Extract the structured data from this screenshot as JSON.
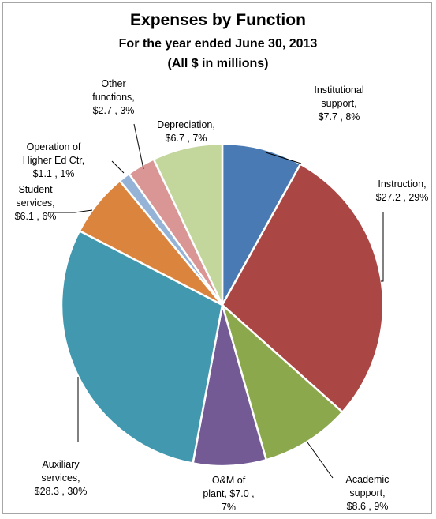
{
  "chart_data": {
    "type": "pie",
    "title": "Expenses by Function",
    "subtitle": "For the year ended June 30, 2013",
    "subtitle2": "(All $ in millions)",
    "slices": [
      {
        "name": "Institutional support",
        "value": 7.7,
        "percent": 8,
        "color": "#4a7ab4",
        "label_lines": [
          "Institutional",
          "support,",
          "$7.7 , 8%"
        ]
      },
      {
        "name": "Instruction",
        "value": 27.2,
        "percent": 29,
        "color": "#aa4744",
        "label_lines": [
          "Instruction,",
          "$27.2 , 29%"
        ]
      },
      {
        "name": "Academic support",
        "value": 8.6,
        "percent": 9,
        "color": "#8ba84d",
        "label_lines": [
          "Academic",
          "support,",
          "$8.6 , 9%"
        ]
      },
      {
        "name": "O&M of plant",
        "value": 7.0,
        "percent": 7,
        "color": "#735a95",
        "label_lines": [
          "O&M of",
          "plant,  $7.0 ,",
          "7%"
        ]
      },
      {
        "name": "Auxiliary services",
        "value": 28.3,
        "percent": 30,
        "color": "#4198af",
        "label_lines": [
          "Auxiliary",
          "services,",
          "$28.3 , 30%"
        ]
      },
      {
        "name": "Student services",
        "value": 6.1,
        "percent": 6,
        "color": "#db843d",
        "label_lines": [
          "Student",
          "services,",
          "$6.1 , 6%"
        ]
      },
      {
        "name": "Operation of Higher Ed Ctr",
        "value": 1.1,
        "percent": 1,
        "color": "#95b3d7",
        "label_lines": [
          "Operation of",
          "Higher Ed Ctr,",
          "$1.1 , 1%"
        ]
      },
      {
        "name": "Other functions",
        "value": 2.7,
        "percent": 3,
        "color": "#d99694",
        "label_lines": [
          "Other",
          "functions,",
          "$2.7 , 3%"
        ]
      },
      {
        "name": "Depreciation",
        "value": 6.7,
        "percent": 7,
        "color": "#c3d69b",
        "label_lines": [
          "Depreciation,",
          "$6.7 , 7%"
        ]
      }
    ]
  }
}
